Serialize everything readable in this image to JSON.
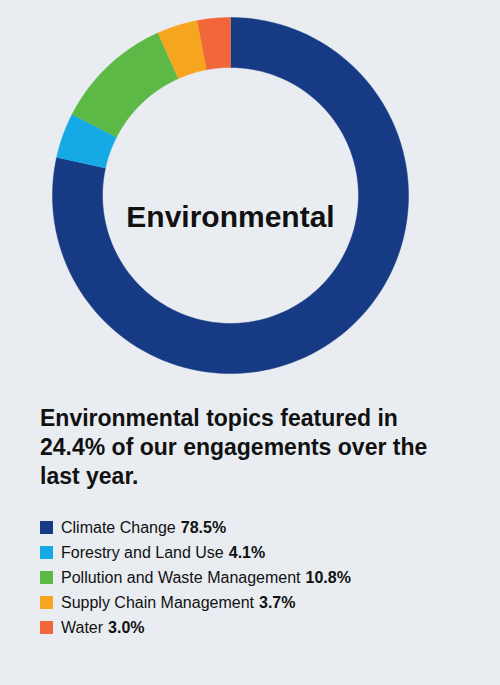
{
  "chart_data": {
    "type": "pie",
    "title": "Environmental topics featured in 24.4% of our engagements over the last year.",
    "annotations": [
      "Environmental"
    ],
    "categories": [
      "Climate Change",
      "Forestry and Land Use",
      "Pollution and Waste Management",
      "Supply Chain Management",
      "Water"
    ],
    "values": [
      78.5,
      4.1,
      10.8,
      3.7,
      3.0
    ],
    "value_labels": [
      "78.5%",
      "4.1%",
      "10.8%",
      "3.7%",
      "3.0%"
    ],
    "colors": [
      "#173a84",
      "#15a9e6",
      "#5cb946",
      "#f6a51f",
      "#f2673a"
    ],
    "legend": "bottom",
    "data_labels": false
  }
}
